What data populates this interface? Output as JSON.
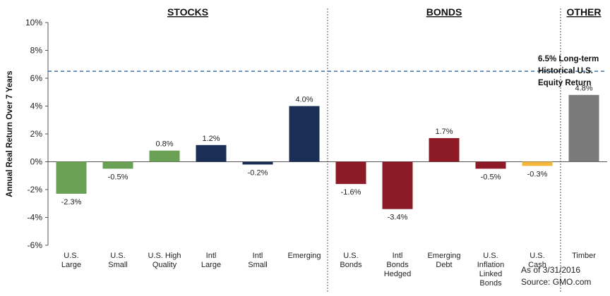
{
  "chart_data": {
    "type": "bar",
    "ylabel": "Annual Real Return Over 7 Years",
    "ylim": [
      -6,
      10
    ],
    "yticks": [
      -6,
      -4,
      -2,
      0,
      2,
      4,
      6,
      8,
      10
    ],
    "ytick_labels": [
      "-6%",
      "-4%",
      "-2%",
      "0%",
      "2%",
      "4%",
      "6%",
      "8%",
      "10%"
    ],
    "groups": [
      {
        "name": "STOCKS"
      },
      {
        "name": "BONDS"
      },
      {
        "name": "OTHER"
      }
    ],
    "bars": [
      {
        "category": [
          "U.S.",
          "Large"
        ],
        "value": -2.3,
        "label": "-2.3%",
        "group": "STOCKS",
        "color": "#6aa155"
      },
      {
        "category": [
          "U.S.",
          "Small"
        ],
        "value": -0.5,
        "label": "-0.5%",
        "group": "STOCKS",
        "color": "#6aa155"
      },
      {
        "category": [
          "U.S. High",
          "Quality"
        ],
        "value": 0.8,
        "label": "0.8%",
        "group": "STOCKS",
        "color": "#6aa155"
      },
      {
        "category": [
          "Intl",
          "Large"
        ],
        "value": 1.2,
        "label": "1.2%",
        "group": "STOCKS",
        "color": "#1b2f56"
      },
      {
        "category": [
          "Intl",
          "Small"
        ],
        "value": -0.2,
        "label": "-0.2%",
        "group": "STOCKS",
        "color": "#1b2f56"
      },
      {
        "category": [
          "Emerging"
        ],
        "value": 4.0,
        "label": "4.0%",
        "group": "STOCKS",
        "color": "#1b2f56"
      },
      {
        "category": [
          "U.S.",
          "Bonds"
        ],
        "value": -1.6,
        "label": "-1.6%",
        "group": "BONDS",
        "color": "#8d1b27"
      },
      {
        "category": [
          "Intl",
          "Bonds",
          "Hedged"
        ],
        "value": -3.4,
        "label": "-3.4%",
        "group": "BONDS",
        "color": "#8d1b27"
      },
      {
        "category": [
          "Emerging",
          "Debt"
        ],
        "value": 1.7,
        "label": "1.7%",
        "group": "BONDS",
        "color": "#8d1b27"
      },
      {
        "category": [
          "U.S.",
          "Inflation",
          "Linked",
          "Bonds"
        ],
        "value": -0.5,
        "label": "-0.5%",
        "group": "BONDS",
        "color": "#8d1b27"
      },
      {
        "category": [
          "U.S.",
          "Cash"
        ],
        "value": -0.3,
        "label": "-0.3%",
        "group": "BONDS",
        "color": "#f5b73a"
      },
      {
        "category": [
          "Timber"
        ],
        "value": 4.8,
        "label": "4.8%",
        "group": "OTHER",
        "color": "#7a7a7a"
      }
    ],
    "reference_line": {
      "value": 6.5,
      "label": [
        "6.5% Long-term",
        "Historical U.S.",
        "Equity Return"
      ],
      "color": "#3a6fa6"
    },
    "grid": false,
    "legend": "none"
  },
  "footer": {
    "asof": "As of 3/31/2016",
    "source": "Source: GMO.com"
  }
}
